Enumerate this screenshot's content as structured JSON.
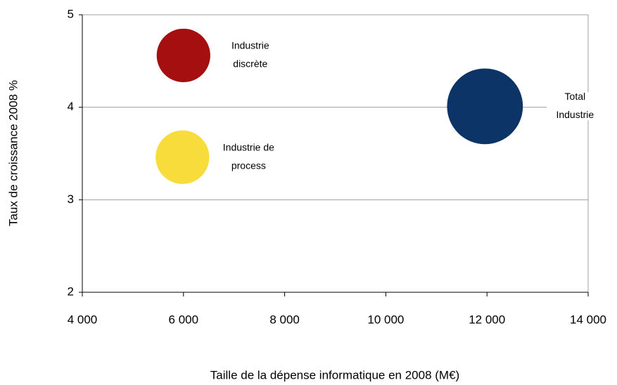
{
  "chart_data": {
    "type": "bubble",
    "x_label": "Taille de la dépense informatique en 2008 (M€)",
    "y_label": "Taux de croissance 2008 %",
    "xlim": [
      4000,
      14000
    ],
    "xticks": [
      {
        "value": 4000,
        "label": "4 000"
      },
      {
        "value": 6000,
        "label": "6 000"
      },
      {
        "value": 8000,
        "label": "8 000"
      },
      {
        "value": 10000,
        "label": "10 000"
      },
      {
        "value": 12000,
        "label": "12 000"
      },
      {
        "value": 14000,
        "label": "14 000"
      }
    ],
    "ylim": [
      2,
      5
    ],
    "yticks": [
      2,
      3,
      4,
      5
    ],
    "grid": true,
    "series": [
      {
        "label": [
          "Industrie",
          "discrète"
        ],
        "color": "#a50f0f",
        "x": 6000,
        "y": 4.56,
        "size": 6000
      },
      {
        "label": [
          "Industrie de",
          "process"
        ],
        "color": "#f7dc3c",
        "x": 5980,
        "y": 3.46,
        "size": 6000
      },
      {
        "label": [
          "Total",
          "Industrie"
        ],
        "color": "#0d3466",
        "x": 11960,
        "y": 4.01,
        "size": 12000
      }
    ]
  }
}
